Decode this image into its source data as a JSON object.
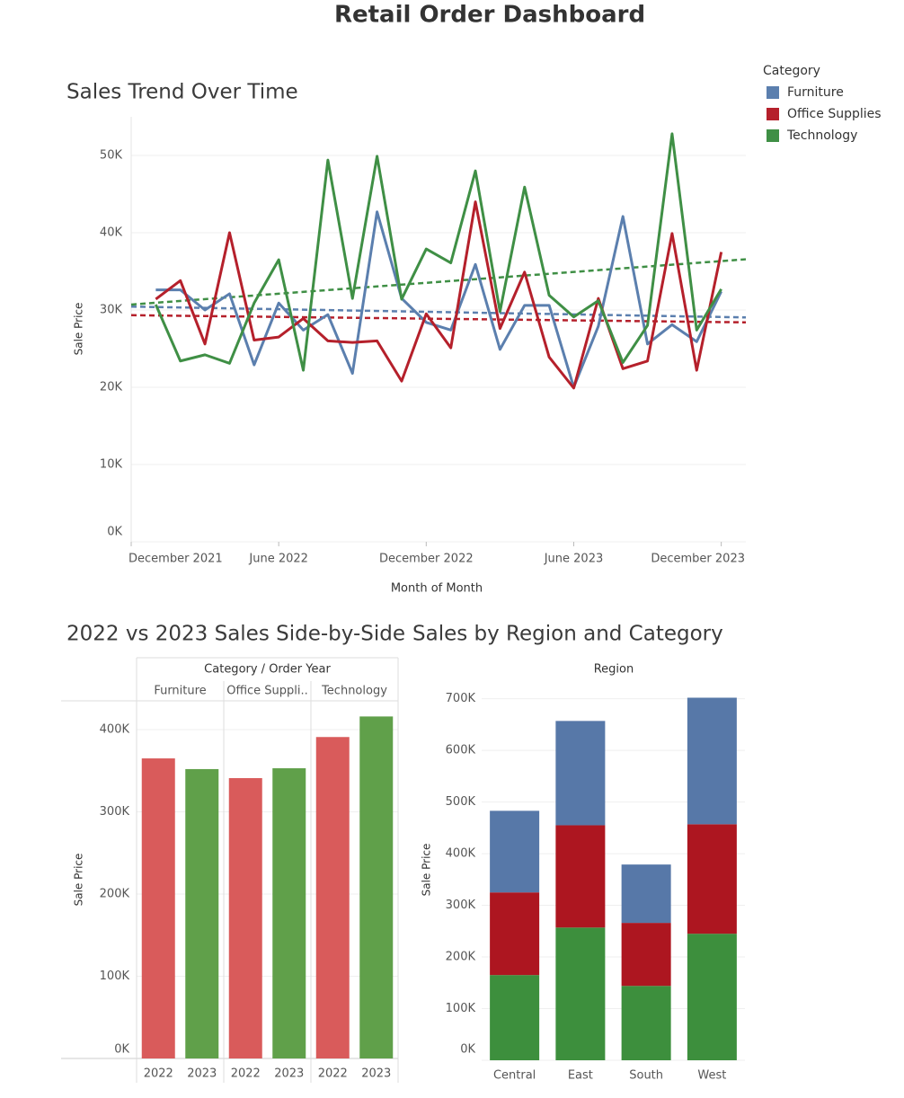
{
  "title": "Retail Order Dashboard",
  "chart_data": [
    {
      "type": "line",
      "title": "Sales Trend Over Time",
      "x_label": "Month of Month",
      "y_label": "Sale Price",
      "legend_title": "Category",
      "trend_lines": true,
      "grid": true,
      "x": [
        "2022-01",
        "2022-02",
        "2022-03",
        "2022-04",
        "2022-05",
        "2022-06",
        "2022-07",
        "2022-08",
        "2022-09",
        "2022-10",
        "2022-11",
        "2022-12",
        "2023-01",
        "2023-02",
        "2023-03",
        "2023-04",
        "2023-05",
        "2023-06",
        "2023-07",
        "2023-08",
        "2023-09",
        "2023-10",
        "2023-11",
        "2023-12"
      ],
      "xlim": [
        "2021-12",
        "2024-01"
      ],
      "xticks": [
        {
          "value": "2021-12",
          "label": "December 2021"
        },
        {
          "value": "2022-06",
          "label": "June 2022"
        },
        {
          "value": "2022-12",
          "label": "December 2022"
        },
        {
          "value": "2023-06",
          "label": "June 2023"
        },
        {
          "value": "2023-12",
          "label": "December 2023"
        }
      ],
      "ylim": [
        0,
        55000
      ],
      "yticks": [
        {
          "value": 0,
          "label": "0K"
        },
        {
          "value": 10000,
          "label": "10K"
        },
        {
          "value": 20000,
          "label": "20K"
        },
        {
          "value": 30000,
          "label": "30K"
        },
        {
          "value": 40000,
          "label": "40K"
        },
        {
          "value": 50000,
          "label": "50K"
        }
      ],
      "series": [
        {
          "name": "Furniture",
          "color": "#5b7fae",
          "values": [
            32600,
            32600,
            30000,
            32100,
            22900,
            30900,
            27400,
            29400,
            21800,
            42700,
            31500,
            28400,
            27400,
            35900,
            24900,
            30600,
            30600,
            20000,
            27900,
            42100,
            25600,
            28100,
            25900,
            32400
          ]
        },
        {
          "name": "Office Supplies",
          "color": "#b5202b",
          "values": [
            31400,
            33800,
            25600,
            40000,
            26100,
            26500,
            28900,
            26000,
            25800,
            26000,
            20800,
            29500,
            25100,
            44000,
            27600,
            34900,
            23900,
            19900,
            31500,
            22400,
            23400,
            39900,
            22200,
            37500
          ]
        },
        {
          "name": "Technology",
          "color": "#3f8f45",
          "values": [
            30700,
            23400,
            24200,
            23100,
            30900,
            36500,
            22200,
            49400,
            31500,
            49900,
            31400,
            37900,
            36100,
            48000,
            29800,
            45900,
            31900,
            29100,
            31200,
            23200,
            28000,
            52800,
            27400,
            32700
          ]
        }
      ]
    },
    {
      "type": "grouped_bar",
      "title": "2022 vs 2023 Sales Side-by-Side",
      "header": "Category / Order Year",
      "y_label": "Sale Price",
      "grid": true,
      "categories": [
        "Furniture",
        "Office Suppli..",
        "Technology"
      ],
      "ylim": [
        0,
        435000
      ],
      "yticks": [
        {
          "value": 0,
          "label": "0K"
        },
        {
          "value": 100000,
          "label": "100K"
        },
        {
          "value": 200000,
          "label": "200K"
        },
        {
          "value": 300000,
          "label": "300K"
        },
        {
          "value": 400000,
          "label": "400K"
        }
      ],
      "series": [
        {
          "name": "2022",
          "color": "#d95b5b",
          "values": [
            365000,
            341000,
            391000
          ]
        },
        {
          "name": "2023",
          "color": "#60a04a",
          "values": [
            352000,
            353000,
            416000
          ]
        }
      ]
    },
    {
      "type": "stacked_bar",
      "title": "Sales by Region and Category",
      "header": "Region",
      "y_label": "Sale Price",
      "grid": true,
      "categories": [
        "Central",
        "East",
        "South",
        "West"
      ],
      "ylim": [
        0,
        722000
      ],
      "yticks": [
        {
          "value": 0,
          "label": "0K"
        },
        {
          "value": 100000,
          "label": "100K"
        },
        {
          "value": 200000,
          "label": "200K"
        },
        {
          "value": 300000,
          "label": "300K"
        },
        {
          "value": 400000,
          "label": "400K"
        },
        {
          "value": 500000,
          "label": "500K"
        },
        {
          "value": 600000,
          "label": "600K"
        },
        {
          "value": 700000,
          "label": "700K"
        }
      ],
      "series": [
        {
          "color": "#3d8f3d",
          "values": [
            165000,
            257000,
            144000,
            245000
          ]
        },
        {
          "color": "#ad1620",
          "values": [
            160000,
            198000,
            122000,
            212000
          ]
        },
        {
          "color": "#5778a8",
          "values": [
            158000,
            202000,
            113000,
            245000
          ]
        }
      ]
    }
  ]
}
